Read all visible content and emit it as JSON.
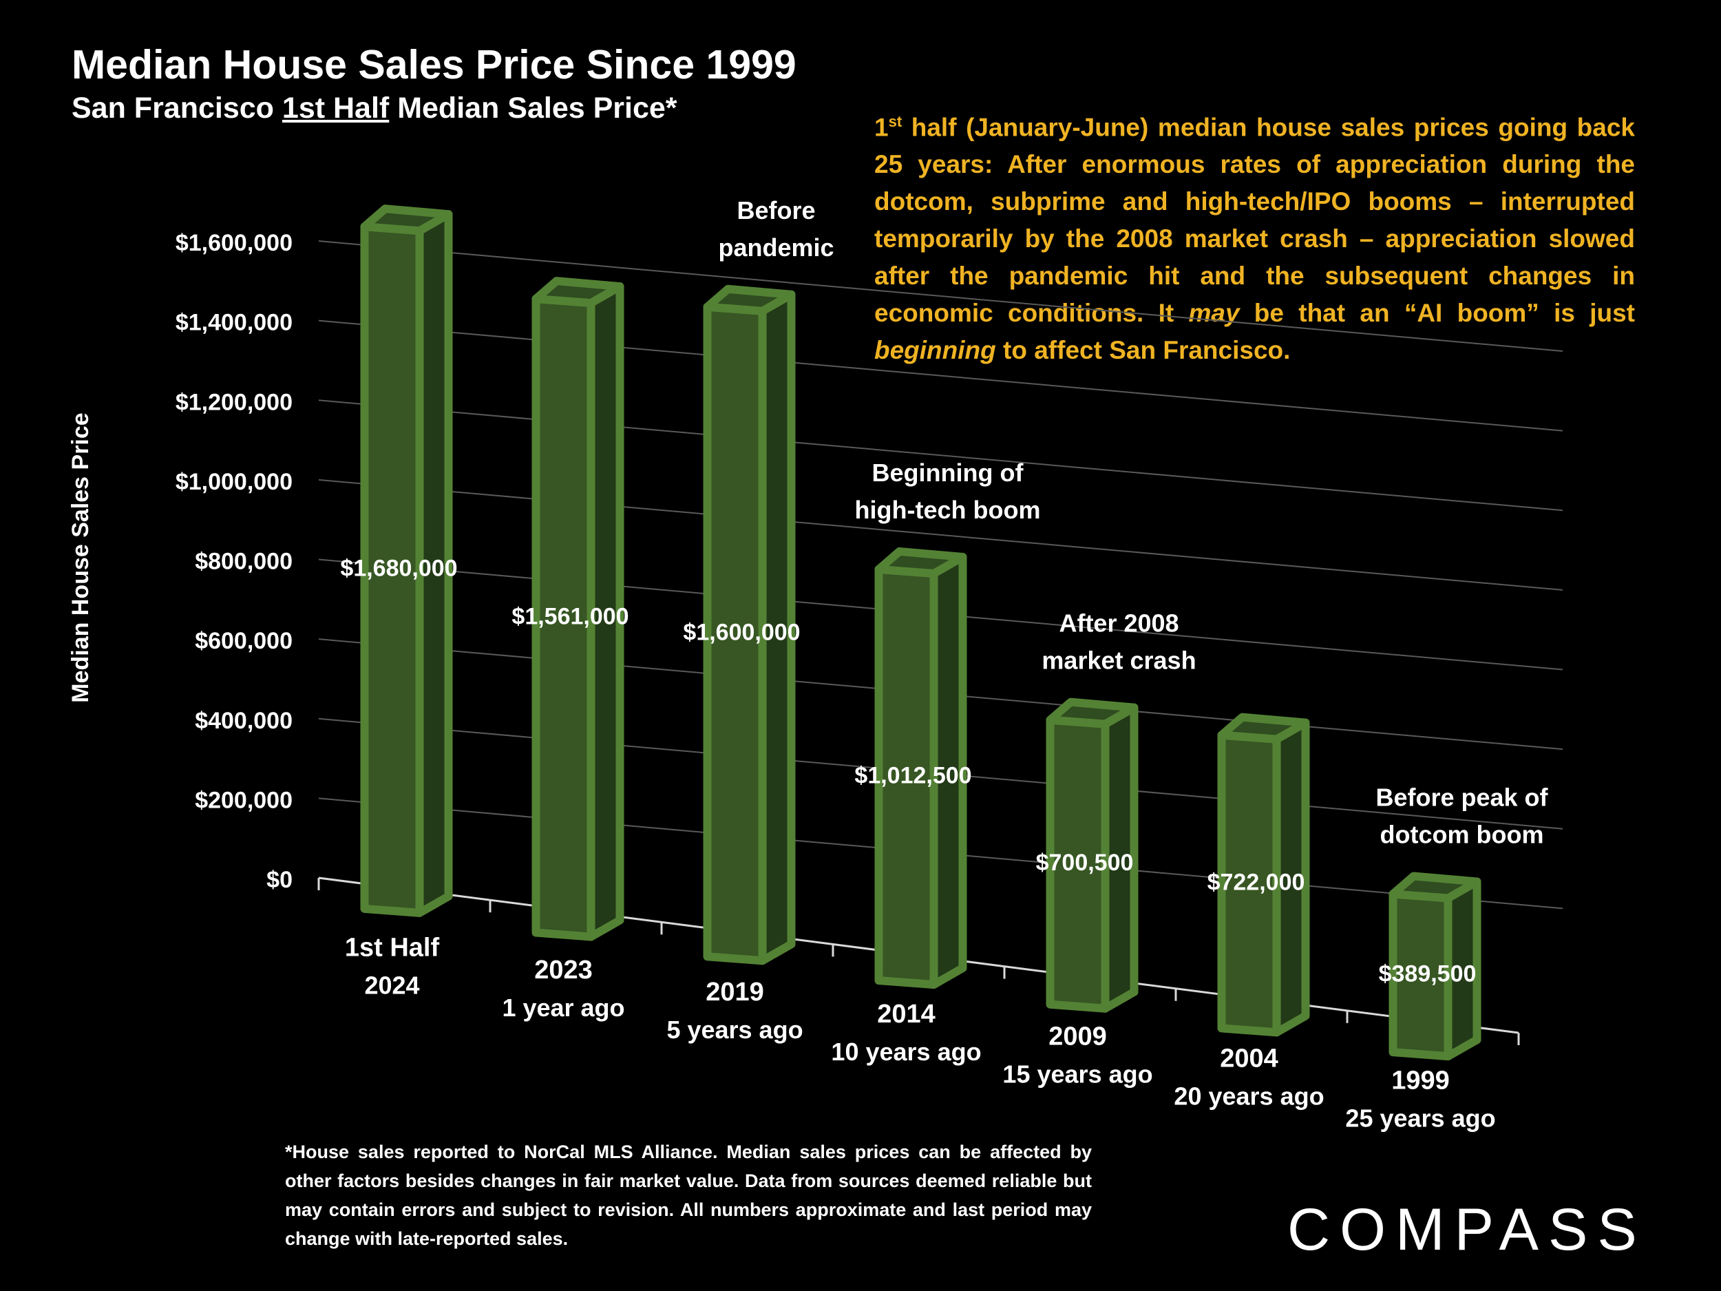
{
  "header": {
    "title": "Median House Sales Price Since 1999",
    "subtitle_pre": "San Francisco ",
    "subtitle_underlined": "1st Half",
    "subtitle_post": " Median Sales Price*"
  },
  "description": {
    "sup_lead": "1",
    "sup": "st",
    "part1": " half (January-June) median house sales prices going back 25 years:  After enormous rates of appreciation during the dotcom, subprime and high-tech/IPO booms – interrupted temporarily by the 2008 market crash – appreciation slowed after the pandemic hit and the subsequent changes in economic conditions. It ",
    "italic1": "may",
    "part2": " be that an “AI boom” is just ",
    "italic2": "beginning",
    "part3": " to affect San Francisco."
  },
  "footnote": "*House sales reported to NorCal MLS Alliance. Median sales prices can be affected by other factors besides changes in fair market value. Data from sources deemed reliable but may contain errors and subject to revision. All numbers  approximate and last period may change with late-reported sales.",
  "logo": {
    "text": "COMPASS"
  },
  "colors": {
    "background": "#000000",
    "bar_front": "#375623",
    "bar_side": "#223a17",
    "bar_top": "#2f4d20",
    "bar_edge": "#548235",
    "annotation_text": "#f0b323",
    "grid": "#595959"
  },
  "chart_data": {
    "type": "bar",
    "ylabel": "Median House Sales Price",
    "ylim": [
      0,
      1600000
    ],
    "yticks": [
      0,
      200000,
      400000,
      600000,
      800000,
      1000000,
      1200000,
      1400000,
      1600000
    ],
    "ytick_labels": [
      "$0",
      "$200,000",
      "$400,000",
      "$600,000",
      "$800,000",
      "$1,000,000",
      "$1,200,000",
      "$1,400,000",
      "$1,600,000"
    ],
    "grid": true,
    "categories": [
      {
        "label": "1st Half",
        "label2": "2024",
        "value": 1680000,
        "value_label": "$1,680,000",
        "note": ""
      },
      {
        "label": "2023",
        "label2": "1 year ago",
        "value": 1561000,
        "value_label": "$1,561,000",
        "note": ""
      },
      {
        "label": "2019",
        "label2": "5 years ago",
        "value": 1600000,
        "value_label": "$1,600,000",
        "note": "Before|pandemic"
      },
      {
        "label": "2014",
        "label2": "10 years ago",
        "value": 1012500,
        "value_label": "$1,012,500",
        "note": "Beginning of|high-tech boom"
      },
      {
        "label": "2009",
        "label2": "15 years ago",
        "value": 700500,
        "value_label": "$700,500",
        "note": "After 2008|market crash"
      },
      {
        "label": "2004",
        "label2": "20 years ago",
        "value": 722000,
        "value_label": "$722,000",
        "note": ""
      },
      {
        "label": "1999",
        "label2": "25 years ago",
        "value": 389500,
        "value_label": "$389,500",
        "note": "Before peak of|dotcom boom"
      }
    ]
  }
}
